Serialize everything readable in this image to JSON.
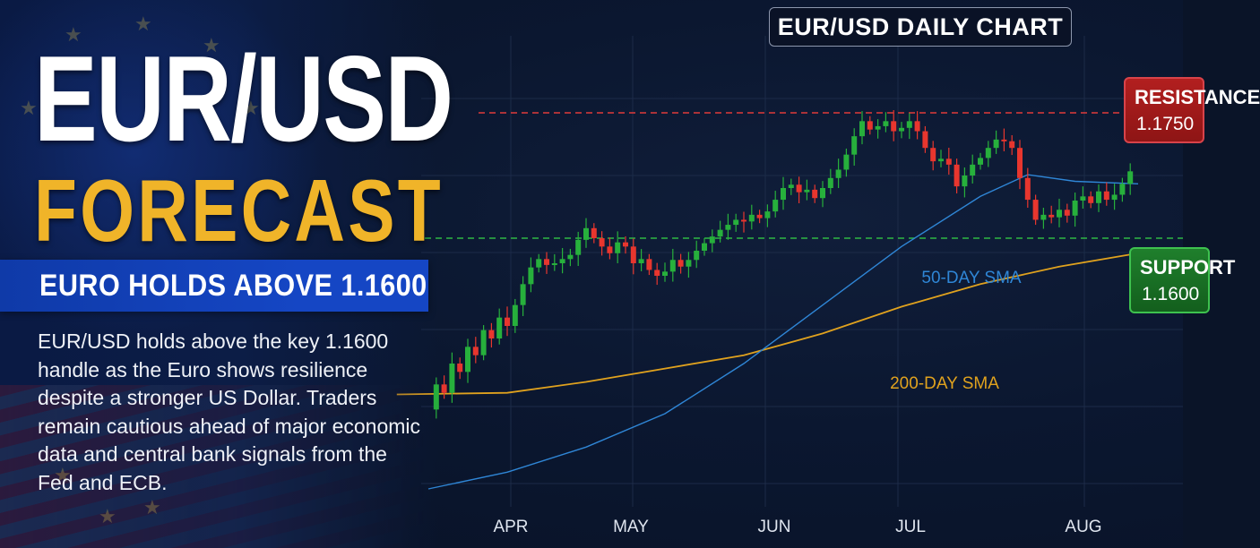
{
  "headline": "EUR/USD",
  "subheadline": "FORECAST",
  "banner": "EURO HOLDS ABOVE 1.1600",
  "description": "EUR/USD holds above the key 1.1600 handle as the Euro shows resilience despite a stronger US Dollar. Traders remain cautious ahead of major economic data and central bank signals from the Fed and ECB.",
  "colors": {
    "headline": "#ffffff",
    "subheadline": "#f0b429",
    "banner": "#1546c4",
    "bullish_candle": "#27b03c",
    "bearish_candle": "#e8362e",
    "resistance_line": "#e03a3a",
    "support_line": "#2fb844",
    "sma50": "#2f86d6",
    "sma200": "#e0a21e"
  },
  "chart_data": {
    "type": "candlestick",
    "title": "EUR/USD DAILY CHART",
    "x_tick_labels": [
      "APR",
      "MAY",
      "JUN",
      "JUL",
      "AUG"
    ],
    "resistance": {
      "label": "RESISTANCE",
      "value": "1.1750"
    },
    "support": {
      "label": "SUPPORT",
      "value": "1.1600"
    },
    "sma50_label": "50-DAY SMA",
    "sma200_label": "200-DAY SMA",
    "grid": true,
    "closes": [
      1.1395,
      1.1425,
      1.1415,
      1.145,
      1.144,
      1.147,
      1.146,
      1.149,
      1.148,
      1.1505,
      1.1495,
      1.152,
      1.1545,
      1.1565,
      1.1575,
      1.1568,
      1.157,
      1.1575,
      1.158,
      1.1598,
      1.1612,
      1.16,
      1.159,
      1.1582,
      1.1595,
      1.159,
      1.157,
      1.1575,
      1.1562,
      1.1555,
      1.156,
      1.1574,
      1.1566,
      1.1574,
      1.1585,
      1.1594,
      1.1602,
      1.161,
      1.1616,
      1.1622,
      1.162,
      1.1628,
      1.1624,
      1.1632,
      1.1646,
      1.166,
      1.1664,
      1.1655,
      1.1658,
      1.1648,
      1.166,
      1.1672,
      1.1682,
      1.17,
      1.1722,
      1.174,
      1.173,
      1.1734,
      1.174,
      1.1728,
      1.1732,
      1.174,
      1.1728,
      1.1708,
      1.1692,
      1.1695,
      1.1688,
      1.1662,
      1.1675,
      1.1688,
      1.1696,
      1.1708,
      1.1718,
      1.1716,
      1.1708,
      1.1672,
      1.1646,
      1.1622,
      1.1628,
      1.1625,
      1.1634,
      1.1627,
      1.1645,
      1.165,
      1.1642,
      1.1656,
      1.1646,
      1.1652,
      1.1665,
      1.168
    ],
    "sma50": [
      [
        0,
        1.13
      ],
      [
        10,
        1.132
      ],
      [
        20,
        1.135
      ],
      [
        30,
        1.139
      ],
      [
        40,
        1.145
      ],
      [
        50,
        1.152
      ],
      [
        60,
        1.159
      ],
      [
        70,
        1.165
      ],
      [
        76,
        1.1676
      ],
      [
        82,
        1.1668
      ],
      [
        90,
        1.1665
      ]
    ],
    "sma200": [
      [
        -4,
        1.1413
      ],
      [
        10,
        1.1415
      ],
      [
        20,
        1.1428
      ],
      [
        30,
        1.1444
      ],
      [
        40,
        1.146
      ],
      [
        50,
        1.1486
      ],
      [
        60,
        1.1518
      ],
      [
        70,
        1.1545
      ],
      [
        80,
        1.1566
      ],
      [
        90,
        1.1582
      ]
    ]
  }
}
